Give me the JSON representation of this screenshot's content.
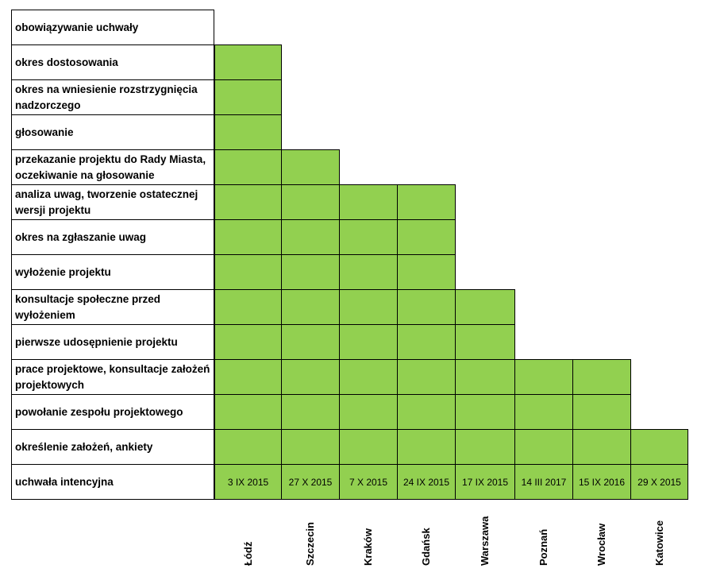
{
  "chart_data": {
    "type": "table",
    "stages": [
      "obowiązywanie uchwały",
      "okres dostosowania",
      "okres na wniesienie rozstrzygnięcia  nadzorczego",
      "głosowanie",
      "przekazanie projektu do Rady Miasta, oczekiwanie na głosowanie",
      "analiza uwag, tworzenie ostatecznej wersji projektu",
      "okres na zgłaszanie uwag",
      "wyłożenie projektu",
      "konsultacje społeczne przed wyłożeniem",
      "pierwsze udosępnienie projektu",
      "prace projektowe, konsultacje założeń projektowych",
      "powołanie zespołu projektowego",
      "określenie założeń, ankiety",
      "uchwała intencyjna"
    ],
    "cities": [
      {
        "name": "Łódź",
        "date": "3 IX 2015",
        "stages_reached": 13
      },
      {
        "name": "Szczecin",
        "date": "27 X 2015",
        "stages_reached": 10
      },
      {
        "name": "Kraków",
        "date": "7 X 2015",
        "stages_reached": 9
      },
      {
        "name": "Gdańsk",
        "date": "24 IX  2015",
        "stages_reached": 9
      },
      {
        "name": "Warszawa",
        "date": "17 IX 2015",
        "stages_reached": 6
      },
      {
        "name": "Poznań",
        "date": "14 III 2017",
        "stages_reached": 4
      },
      {
        "name": "Wrocław",
        "date": "15 IX 2016",
        "stages_reached": 4
      },
      {
        "name": "Katowice",
        "date": "29 X 2015",
        "stages_reached": 2
      }
    ],
    "colors": {
      "fill": "#92d050",
      "border": "#000000"
    }
  }
}
